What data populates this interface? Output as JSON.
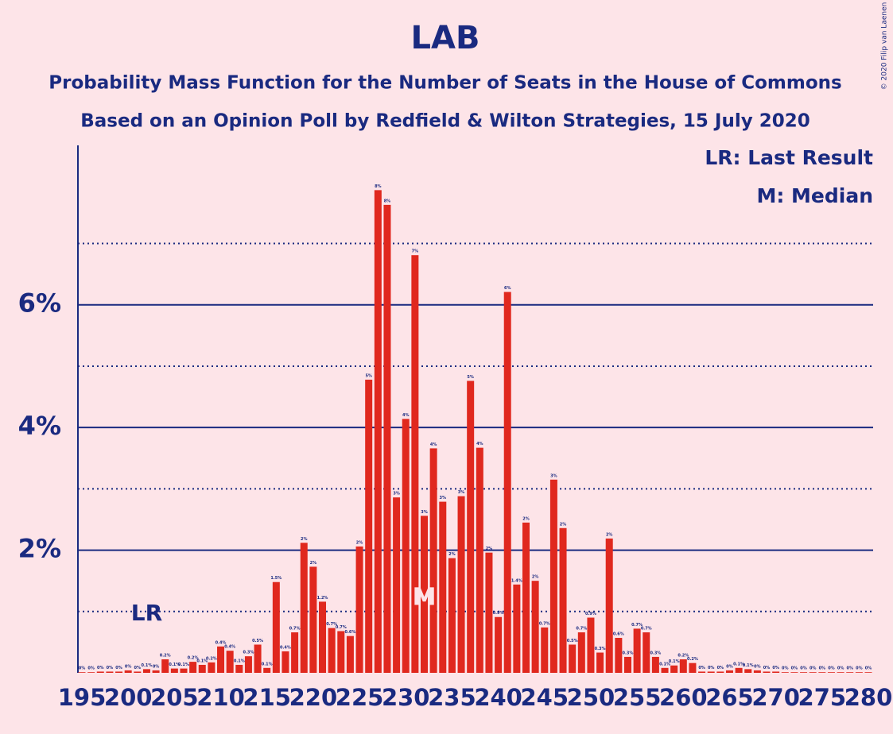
{
  "chart_data": {
    "type": "bar",
    "title": "LAB",
    "subtitle": [
      "Probability Mass Function for the Number of Seats in the House of Commons",
      "Based on an Opinion Poll by Redfield & Wilton Strategies, 15 July 2020"
    ],
    "credit": "© 2020 Filip van Laenen",
    "color": "#e0281e",
    "x": [
      195,
      196,
      197,
      198,
      199,
      200,
      201,
      202,
      203,
      204,
      205,
      206,
      207,
      208,
      209,
      210,
      211,
      212,
      213,
      214,
      215,
      216,
      217,
      218,
      219,
      220,
      221,
      222,
      223,
      224,
      225,
      226,
      227,
      228,
      229,
      230,
      231,
      232,
      233,
      234,
      235,
      236,
      237,
      238,
      239,
      240,
      241,
      242,
      243,
      244,
      245,
      246,
      247,
      248,
      249,
      250,
      251,
      252,
      253,
      254,
      255,
      256,
      257,
      258,
      259,
      260,
      261,
      262,
      263,
      264,
      265,
      266,
      267,
      268,
      269,
      270,
      271,
      272,
      273,
      274,
      275,
      276,
      277,
      278,
      279,
      280
    ],
    "values": [
      0.01,
      0.01,
      0.02,
      0.02,
      0.02,
      0.04,
      0.02,
      0.06,
      0.04,
      0.22,
      0.07,
      0.07,
      0.18,
      0.13,
      0.17,
      0.43,
      0.36,
      0.13,
      0.27,
      0.46,
      0.08,
      1.48,
      0.35,
      0.66,
      2.12,
      1.73,
      1.16,
      0.73,
      0.68,
      0.6,
      2.06,
      4.78,
      7.87,
      7.63,
      2.86,
      4.14,
      6.81,
      2.56,
      3.66,
      2.79,
      1.87,
      2.88,
      4.76,
      3.67,
      1.96,
      0.91,
      6.21,
      1.44,
      2.45,
      1.5,
      0.74,
      3.15,
      2.36,
      0.46,
      0.66,
      0.9,
      0.33,
      2.19,
      0.57,
      0.26,
      0.72,
      0.66,
      0.26,
      0.08,
      0.12,
      0.22,
      0.16,
      0.02,
      0.02,
      0.02,
      0.04,
      0.08,
      0.06,
      0.04,
      0.02,
      0.02,
      0.01,
      0.01,
      0.01,
      0.01,
      0.01,
      0.01,
      0.01,
      0.01,
      0.01,
      0.01
    ],
    "value_labels": [
      "0%",
      "0%",
      "0%",
      "0%",
      "0%",
      "0%",
      "0%",
      "0.1%",
      "0%",
      "0.2%",
      "0.1%",
      "0.1%",
      "0.2%",
      "0.1%",
      "0.2%",
      "0.4%",
      "0.4%",
      "0.1%",
      "0.3%",
      "0.5%",
      "0.1%",
      "1.5%",
      "0.4%",
      "0.7%",
      "2%",
      "2%",
      "1.2%",
      "0.7%",
      "0.7%",
      "0.6%",
      "2%",
      "5%",
      "8%",
      "8%",
      "3%",
      "4%",
      "7%",
      "3%",
      "4%",
      "3%",
      "2%",
      "3%",
      "5%",
      "4%",
      "2%",
      "0.9%",
      "6%",
      "1.4%",
      "2%",
      "2%",
      "0.7%",
      "3%",
      "2%",
      "0.5%",
      "0.7%",
      "0.9%",
      "0.3%",
      "2%",
      "0.6%",
      "0.3%",
      "0.7%",
      "0.7%",
      "0.3%",
      "0.1%",
      "0.1%",
      "0.2%",
      "0.2%",
      "0%",
      "0%",
      "0%",
      "0%",
      "0.1%",
      "0.1%",
      "0%",
      "0%",
      "0%",
      "0%",
      "0%",
      "0%",
      "0%",
      "0%",
      "0%",
      "0%",
      "0%",
      "0%",
      "0%"
    ],
    "xlim": [
      195,
      280
    ],
    "xticks": [
      195,
      200,
      205,
      210,
      215,
      220,
      225,
      230,
      235,
      240,
      245,
      250,
      255,
      260,
      265,
      270,
      275,
      280
    ],
    "ylim": [
      0,
      8.6
    ],
    "yticks": [
      {
        "value": 2,
        "label": "2%"
      },
      {
        "value": 4,
        "label": "4%"
      },
      {
        "value": 6,
        "label": "6%"
      }
    ],
    "minor_grid": [
      1,
      3,
      5,
      7
    ],
    "last_result": {
      "x": 202,
      "label": "LR"
    },
    "median": {
      "x": 232,
      "label": "M"
    },
    "legend": [
      "LR: Last Result",
      "M: Median"
    ]
  }
}
